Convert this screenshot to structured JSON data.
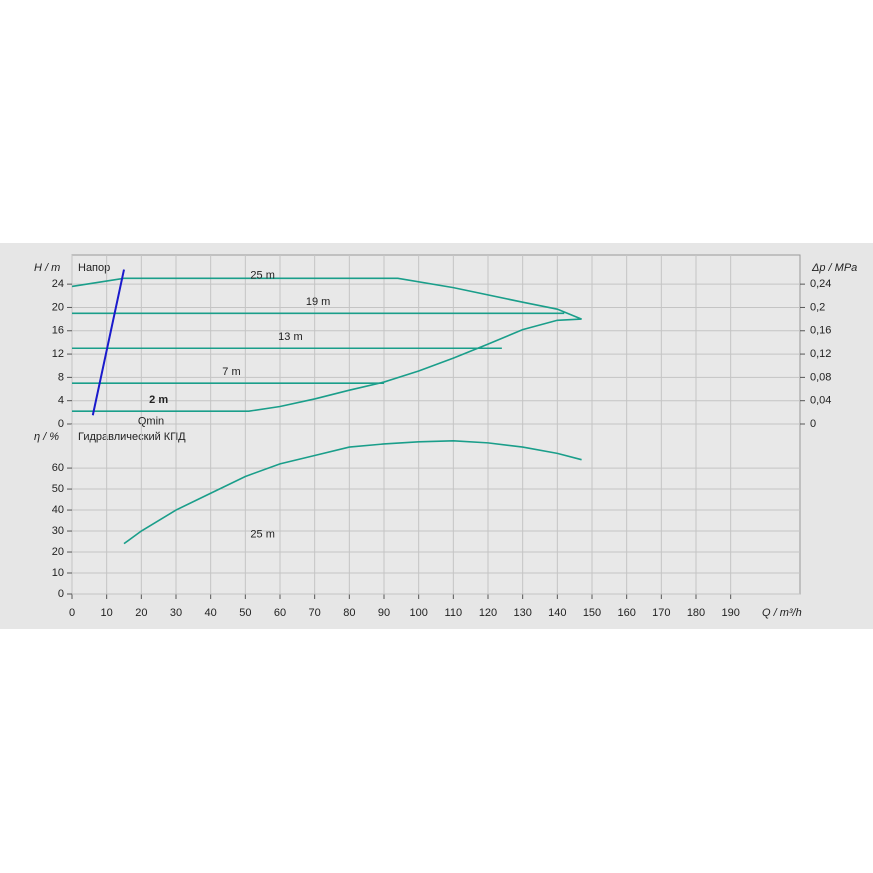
{
  "chart_data": [
    {
      "type": "line",
      "title": "Напор",
      "ylabel": "H / m",
      "y2label": "Δp / MPa",
      "xlim": [
        0,
        210
      ],
      "ylim": [
        0,
        29
      ],
      "yticks": [
        0,
        4,
        8,
        12,
        16,
        20,
        24
      ],
      "y2lim": [
        0,
        0.29
      ],
      "y2ticks": [
        0,
        {
          "value": 0.04,
          "label": "0,04"
        },
        {
          "value": 0.08,
          "label": "0,08"
        },
        {
          "value": 0.12,
          "label": "0,12"
        },
        {
          "value": 0.16,
          "label": "0,16"
        },
        {
          "value": 0.2,
          "label": "0,2"
        },
        {
          "value": 0.24,
          "label": "0,24"
        }
      ],
      "grid": true,
      "series": [
        {
          "name": "25 m",
          "color": "#1a9e8a",
          "x": [
            0,
            15,
            94,
            110,
            130,
            140,
            147
          ],
          "values": [
            23.6,
            25,
            25,
            23.4,
            20.9,
            19.7,
            18
          ]
        },
        {
          "name": "19 m",
          "color": "#1a9e8a",
          "x": [
            0,
            142
          ],
          "values": [
            19,
            19
          ]
        },
        {
          "name": "13 m",
          "color": "#1a9e8a",
          "x": [
            0,
            124
          ],
          "values": [
            13,
            13
          ]
        },
        {
          "name": "7 m",
          "color": "#1a9e8a",
          "x": [
            0,
            90
          ],
          "values": [
            7,
            7
          ]
        },
        {
          "name": "2 m",
          "color": "#1a9e8a",
          "x": [
            0,
            51,
            60,
            70,
            80,
            90,
            100,
            110,
            120,
            130,
            140,
            147
          ],
          "values": [
            2.2,
            2.2,
            3,
            4.3,
            5.8,
            7.2,
            9.1,
            11.3,
            13.7,
            16.2,
            17.8,
            18
          ]
        },
        {
          "name": "Qmin",
          "color": "#1a1acc",
          "x": [
            6,
            15
          ],
          "values": [
            1.5,
            26.5
          ]
        }
      ]
    },
    {
      "type": "line",
      "title": "Гидравлический КПД",
      "ylabel": "η / %",
      "xlabel": "Q / m³/h",
      "xlim": [
        0,
        210
      ],
      "xticks": [
        0,
        10,
        20,
        30,
        40,
        50,
        60,
        70,
        80,
        90,
        100,
        110,
        120,
        130,
        140,
        150,
        160,
        170,
        180,
        190
      ],
      "ylim": [
        0,
        81
      ],
      "yticks": [
        0,
        10,
        20,
        30,
        40,
        50,
        60
      ],
      "grid": true,
      "series": [
        {
          "name": "25 m",
          "color": "#1a9e8a",
          "x": [
            15,
            20,
            30,
            40,
            50,
            60,
            70,
            80,
            90,
            100,
            110,
            120,
            130,
            140,
            147
          ],
          "values": [
            24,
            30,
            40,
            48,
            56,
            62,
            66,
            70,
            71.5,
            72.5,
            73,
            72,
            70,
            67,
            64
          ]
        }
      ]
    }
  ]
}
